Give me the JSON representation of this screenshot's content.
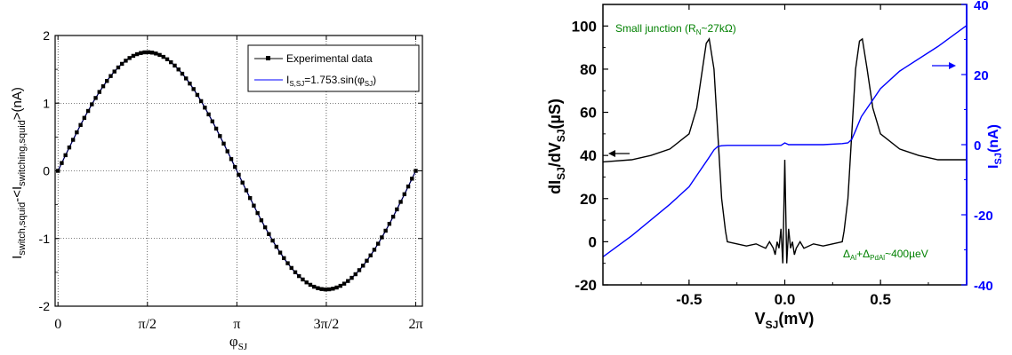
{
  "chart_data": [
    {
      "type": "scatter",
      "xlabel": "φSJ",
      "ylabel": "Iswitch,squid-<Iswitching,squid>(nA)",
      "xlim": [
        -0.05,
        6.4
      ],
      "ylim": [
        -2,
        2
      ],
      "xticks": [
        0,
        1.5708,
        3.1416,
        4.7124,
        6.2832
      ],
      "xtick_labels": [
        "0",
        "π/2",
        "π",
        "3π/2",
        "2π"
      ],
      "yticks": [
        -2,
        -1,
        0,
        1,
        2
      ],
      "ytick_labels": [
        "-2",
        "-1",
        "0",
        "1",
        "2"
      ],
      "grid": true,
      "legend_position": "top-right",
      "colors": {
        "experimental": "#000000",
        "fit": "#0000ff"
      },
      "series": [
        {
          "name": "Experimental data",
          "amplitude": 1.753,
          "x_range": [
            0,
            6.2832
          ],
          "points": 96,
          "marker": "square"
        },
        {
          "name": "I",
          "name_sub": "S,SJ",
          "name_rest": "=1.753.sin(φ",
          "name_sub2": "SJ",
          "name_end": ")",
          "amplitude": 1.753
        }
      ],
      "ylabel_parts": {
        "a": "I",
        "a_sub": "switch,squid",
        "b": "-<I",
        "b_sub": "switching,squid",
        "c": ">(nA)"
      },
      "xlabel_parts": {
        "a": "φ",
        "a_sub": "SJ"
      }
    },
    {
      "type": "line",
      "xlim": [
        -0.95,
        0.95
      ],
      "ylim": [
        -20,
        110
      ],
      "y2lim": [
        -40,
        40
      ],
      "xticks": [
        -0.5,
        0.0,
        0.5
      ],
      "xtick_labels": [
        "-0.5",
        "0.0",
        "0.5"
      ],
      "yticks": [
        -20,
        0,
        20,
        40,
        60,
        80,
        100
      ],
      "ytick_labels": [
        "-20",
        "0",
        "20",
        "40",
        "60",
        "80",
        "100"
      ],
      "y2ticks": [
        -40,
        -20,
        0,
        20,
        40
      ],
      "y2tick_labels": [
        "-40",
        "-20",
        "0",
        "20",
        "40"
      ],
      "colors": {
        "conductance": "#000000",
        "current": "#0000ff",
        "annotation": "#008000"
      },
      "xlabel_parts": {
        "a": "V",
        "a_sub": "SJ",
        "b": "(mV)"
      },
      "ylabel_parts": {
        "a": "dI",
        "a_sub": "SJ",
        "b": "/dV",
        "b_sub": "SJ",
        "c": "(µS)"
      },
      "y2label_parts": {
        "a": "I",
        "a_sub": "SJ",
        "b": "(nA)"
      },
      "annotation_top": {
        "a": "Small junction (R",
        "sub": "N",
        "b": "~27kΩ)"
      },
      "annotation_bottom": {
        "a": "Δ",
        "sub1": "Al",
        "b": "+Δ",
        "sub2": "PdAl",
        "c": "~400µeV"
      },
      "series": [
        {
          "axis": "left",
          "x": [
            -0.95,
            -0.8,
            -0.7,
            -0.6,
            -0.5,
            -0.46,
            -0.43,
            -0.41,
            -0.395,
            -0.37,
            -0.35,
            -0.33,
            -0.31,
            -0.3,
            -0.25,
            -0.2,
            -0.15,
            -0.1,
            -0.08,
            -0.06,
            -0.05,
            -0.04,
            -0.03,
            -0.02,
            -0.01,
            0.0,
            0.01,
            0.02,
            0.03,
            0.04,
            0.05,
            0.06,
            0.08,
            0.1,
            0.15,
            0.2,
            0.25,
            0.3,
            0.31,
            0.33,
            0.35,
            0.37,
            0.39,
            0.405,
            0.43,
            0.46,
            0.5,
            0.6,
            0.7,
            0.8,
            0.95
          ],
          "y": [
            37,
            38,
            40,
            43,
            50,
            62,
            80,
            92,
            94,
            80,
            50,
            20,
            5,
            0,
            -1,
            -2,
            -1,
            -3,
            0,
            -3,
            -6,
            0,
            -3,
            6,
            -10,
            38,
            -10,
            6,
            -3,
            0,
            -6,
            -3,
            0,
            -3,
            -1,
            -2,
            -1,
            0,
            5,
            20,
            50,
            80,
            93,
            94,
            80,
            62,
            50,
            43,
            40,
            38,
            38
          ]
        },
        {
          "axis": "right",
          "x": [
            -0.95,
            -0.8,
            -0.6,
            -0.5,
            -0.45,
            -0.4,
            -0.37,
            -0.35,
            -0.33,
            -0.3,
            -0.2,
            -0.1,
            -0.02,
            0.0,
            0.02,
            0.1,
            0.2,
            0.3,
            0.33,
            0.35,
            0.37,
            0.4,
            0.45,
            0.5,
            0.6,
            0.8,
            0.95
          ],
          "y": [
            -32,
            -26,
            -17,
            -12,
            -8,
            -4,
            -1.5,
            -0.5,
            -0.3,
            -0.2,
            -0.2,
            -0.2,
            -0.2,
            0.5,
            0.0,
            0.0,
            0.0,
            0.3,
            0.5,
            1.5,
            4,
            8,
            12,
            16,
            21,
            28,
            34
          ]
        }
      ]
    }
  ]
}
